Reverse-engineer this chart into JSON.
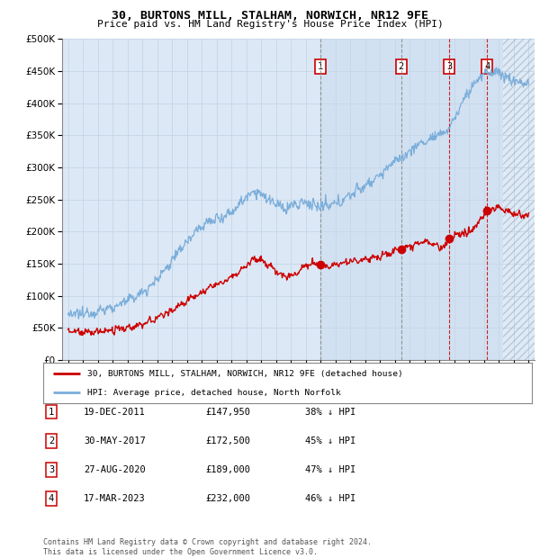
{
  "title": "30, BURTONS MILL, STALHAM, NORWICH, NR12 9FE",
  "subtitle": "Price paid vs. HM Land Registry's House Price Index (HPI)",
  "ytick_values": [
    0,
    50000,
    100000,
    150000,
    200000,
    250000,
    300000,
    350000,
    400000,
    450000,
    500000
  ],
  "xlim_start": 1994.6,
  "xlim_end": 2026.4,
  "ylim_min": 0,
  "ylim_max": 500000,
  "hpi_color": "#7aadda",
  "price_color": "#cc0000",
  "background_color": "#ffffff",
  "plot_bg_color": "#dce8f5",
  "grid_color": "#c8d8e8",
  "sale_dates": [
    2011.97,
    2017.41,
    2020.66,
    2023.21
  ],
  "sale_prices": [
    147950,
    172500,
    189000,
    232000
  ],
  "sale_labels": [
    "1",
    "2",
    "3",
    "4"
  ],
  "vline_colors": [
    "#888888",
    "#888888",
    "#cc0000",
    "#cc0000"
  ],
  "vline_styles": [
    "--",
    "--",
    "--",
    "--"
  ],
  "shade_start": 2011.97,
  "legend_line1": "30, BURTONS MILL, STALHAM, NORWICH, NR12 9FE (detached house)",
  "legend_line2": "HPI: Average price, detached house, North Norfolk",
  "table_rows": [
    [
      "1",
      "19-DEC-2011",
      "£147,950",
      "38% ↓ HPI"
    ],
    [
      "2",
      "30-MAY-2017",
      "£172,500",
      "45% ↓ HPI"
    ],
    [
      "3",
      "27-AUG-2020",
      "£189,000",
      "47% ↓ HPI"
    ],
    [
      "4",
      "17-MAR-2023",
      "£232,000",
      "46% ↓ HPI"
    ]
  ],
  "footnote": "Contains HM Land Registry data © Crown copyright and database right 2024.\nThis data is licensed under the Open Government Licence v3.0.",
  "future_start": 2024.25,
  "hatch_region_color": "#c0cce0"
}
